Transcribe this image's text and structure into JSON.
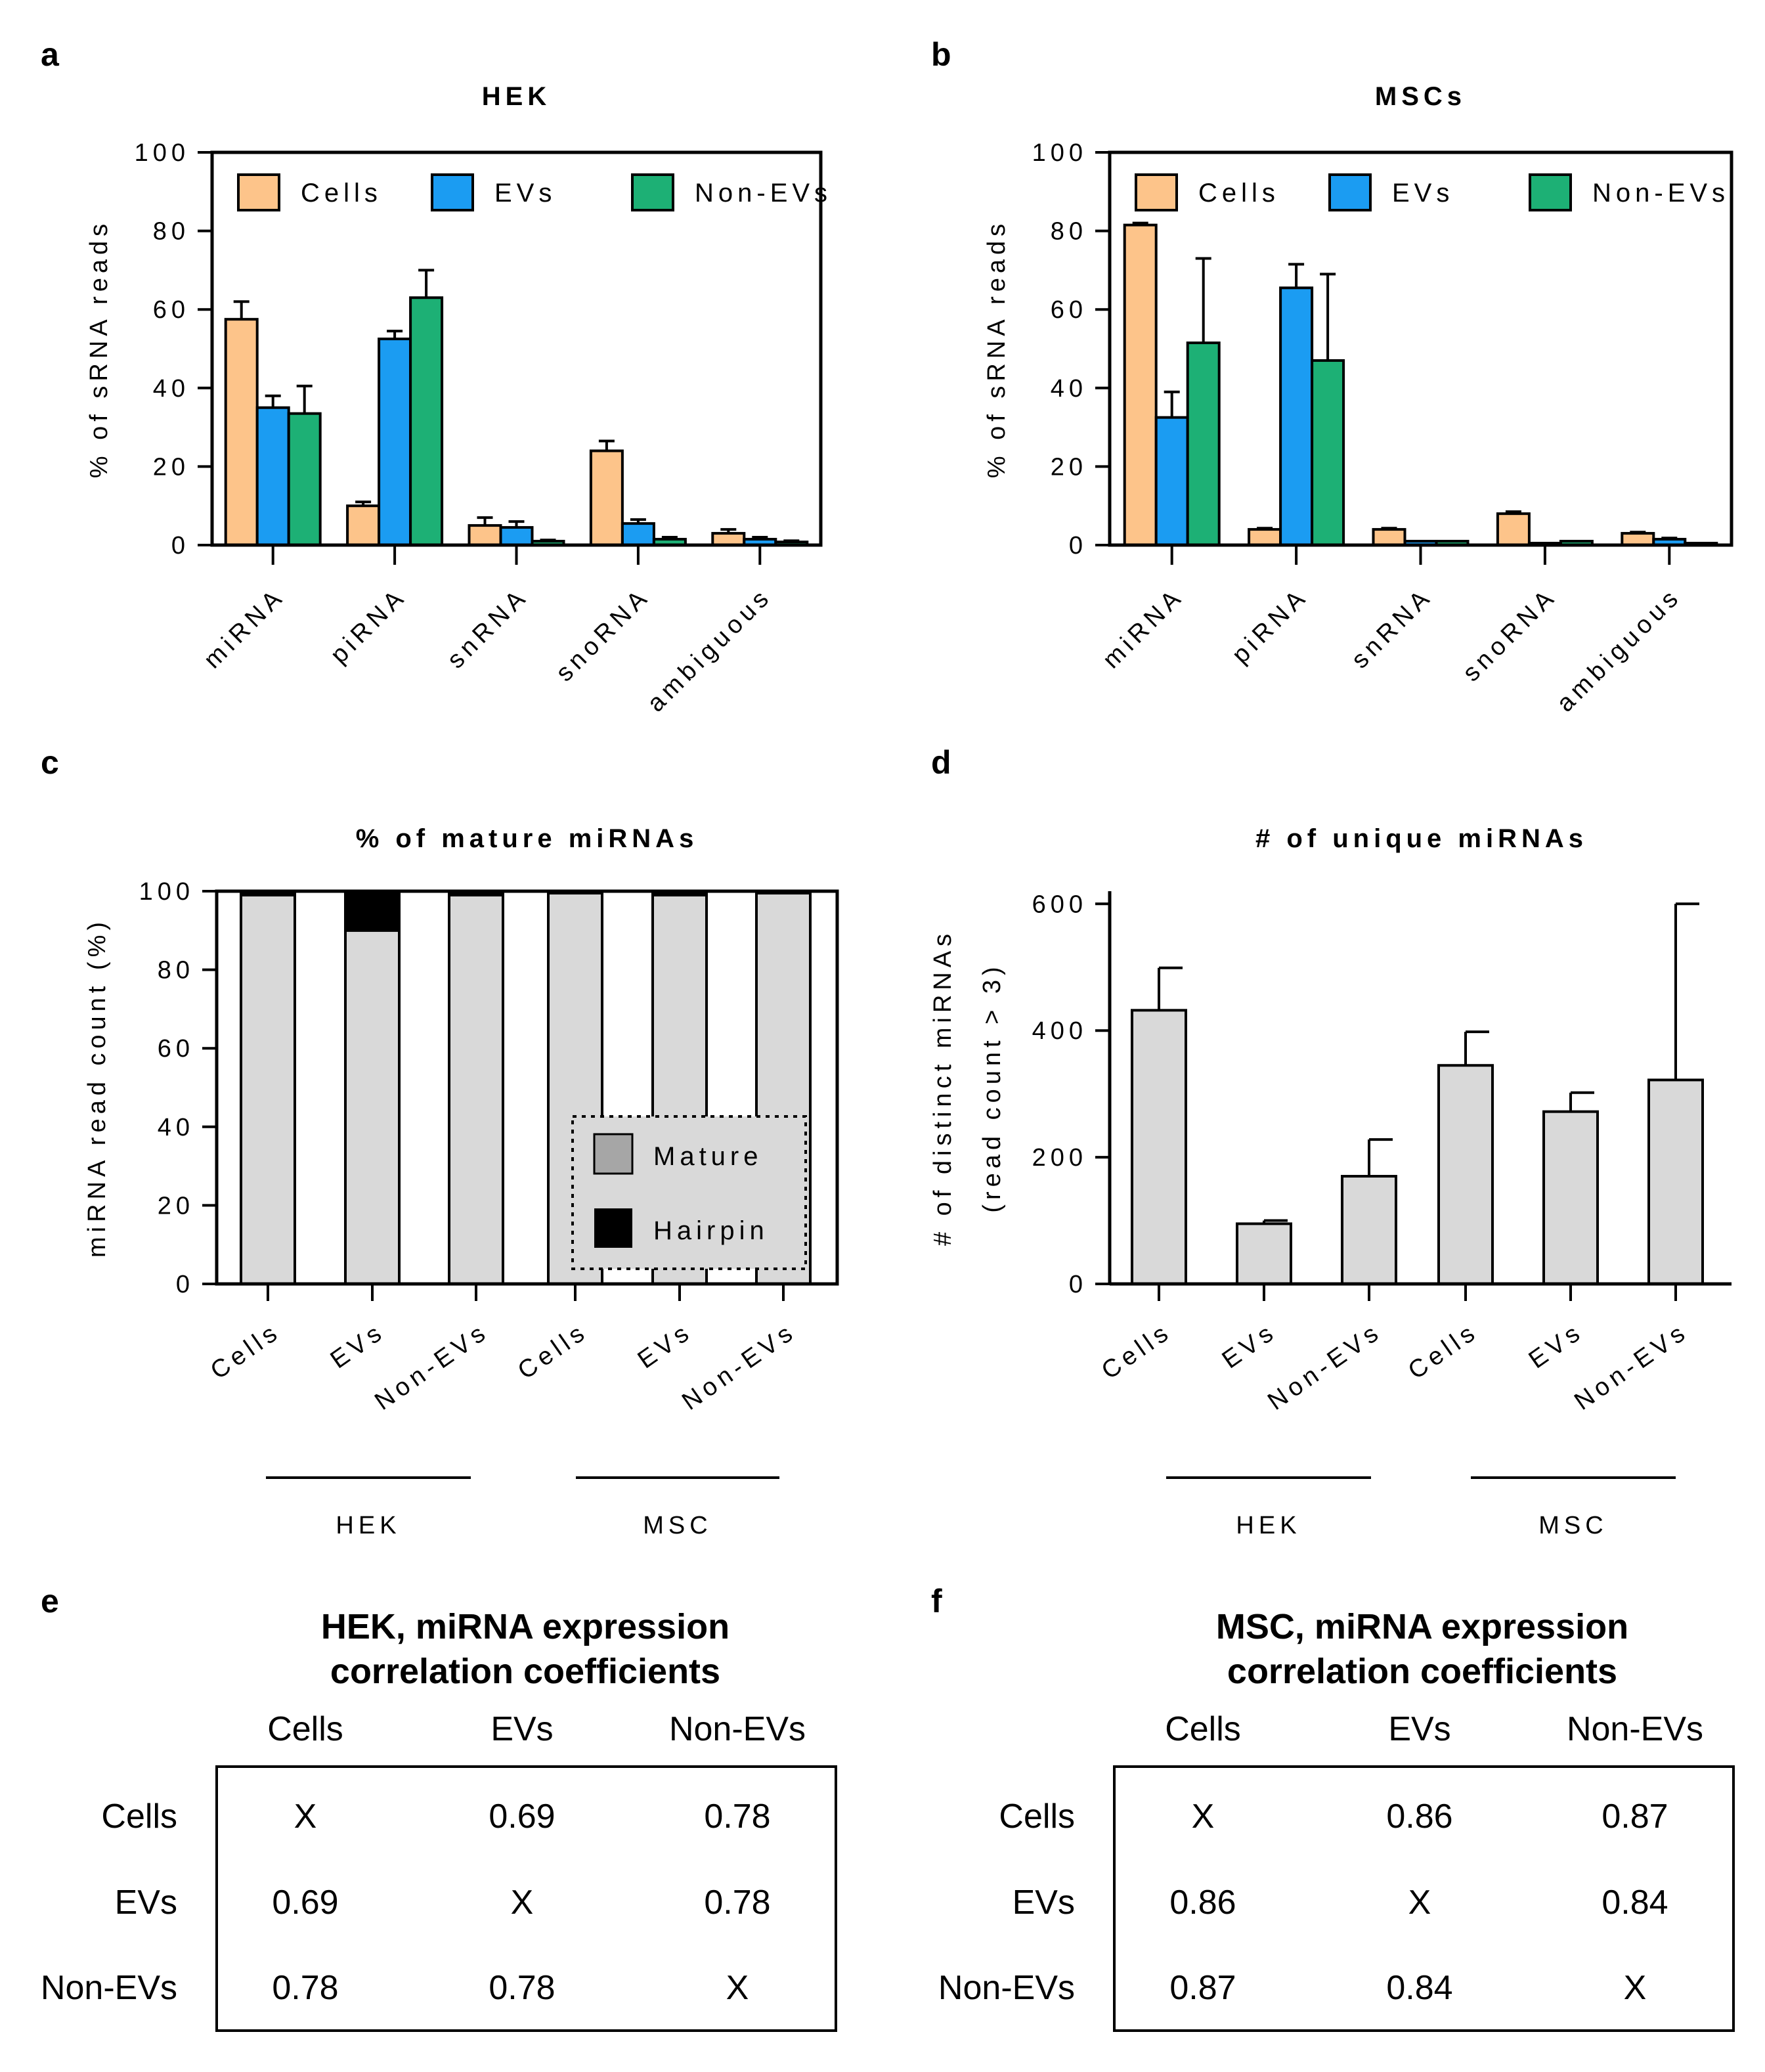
{
  "panels": {
    "a": "a",
    "b": "b",
    "c": "c",
    "d": "d",
    "e": "e",
    "f": "f"
  },
  "colors": {
    "cells": "#FDC48A",
    "evs": "#1B9CF2",
    "nonevs": "#1DB075",
    "grey_bar": "#D9D9D9",
    "mature": "#A6A6A6",
    "hairpin": "#000000"
  },
  "chart_data": [
    {
      "id": "a",
      "type": "bar",
      "title": "HEK",
      "ylabel": "% of sRNA reads",
      "ylim": [
        0,
        100
      ],
      "yticks": [
        "0",
        "20",
        "40",
        "60",
        "80",
        "100"
      ],
      "categories": [
        "miRNA",
        "piRNA",
        "snRNA",
        "snoRNA",
        "ambiguous"
      ],
      "legend": [
        "Cells",
        "EVs",
        "Non-EVs"
      ],
      "series": [
        {
          "name": "Cells",
          "values": [
            57.5,
            10,
            5,
            24,
            3
          ],
          "errors": [
            4.5,
            1,
            2,
            2.5,
            1
          ]
        },
        {
          "name": "EVs",
          "values": [
            35,
            52.5,
            4.5,
            5.5,
            1.5
          ],
          "errors": [
            3,
            2,
            1.5,
            1,
            0.5
          ]
        },
        {
          "name": "Non-EVs",
          "values": [
            33.5,
            63,
            1,
            1.5,
            0.8
          ],
          "errors": [
            7,
            7,
            0.3,
            0.5,
            0.3
          ]
        }
      ]
    },
    {
      "id": "b",
      "type": "bar",
      "title": "MSCs",
      "ylabel": "% of sRNA reads",
      "ylim": [
        0,
        100
      ],
      "yticks": [
        "0",
        "20",
        "40",
        "60",
        "80",
        "100"
      ],
      "categories": [
        "miRNA",
        "piRNA",
        "snRNA",
        "snoRNA",
        "ambiguous"
      ],
      "legend": [
        "Cells",
        "EVs",
        "Non-EVs"
      ],
      "series": [
        {
          "name": "Cells",
          "values": [
            81.5,
            4,
            4,
            8,
            3
          ],
          "errors": [
            0.5,
            0.3,
            0.3,
            0.5,
            0.3
          ]
        },
        {
          "name": "EVs",
          "values": [
            32.5,
            65.5,
            1,
            0.5,
            1.5
          ],
          "errors": [
            6.5,
            6,
            0.2,
            0.1,
            0.3
          ]
        },
        {
          "name": "Non-EVs",
          "values": [
            51.5,
            47,
            1,
            1,
            0.5
          ],
          "errors": [
            21.5,
            22,
            0.2,
            0.2,
            0.1
          ]
        }
      ]
    },
    {
      "id": "c",
      "type": "bar",
      "stacked": true,
      "title": "% of mature miRNAs",
      "ylabel": "miRNA read count (%)",
      "ylim": [
        0,
        100
      ],
      "yticks": [
        "0",
        "20",
        "40",
        "60",
        "80",
        "100"
      ],
      "categories": [
        "Cells",
        "EVs",
        "Non-EVs",
        "Cells",
        "EVs",
        "Non-EVs"
      ],
      "groups": [
        "HEK",
        "MSC"
      ],
      "legend": [
        "Mature",
        "Hairpin"
      ],
      "series": [
        {
          "name": "Mature",
          "values": [
            99,
            90,
            99,
            99.5,
            99,
            99.5
          ]
        },
        {
          "name": "Hairpin",
          "values": [
            1,
            10,
            1,
            0.5,
            1,
            0.5
          ]
        }
      ]
    },
    {
      "id": "d",
      "type": "bar",
      "title": "# of unique miRNAs",
      "ylabel": "# of distinct miRNAs",
      "ylabel2": "(read count > 3)",
      "ylim": [
        0,
        600
      ],
      "yticks": [
        "0",
        "200",
        "400",
        "600"
      ],
      "categories": [
        "Cells",
        "EVs",
        "Non-EVs",
        "Cells",
        "EVs",
        "Non-EVs"
      ],
      "groups": [
        "HEK",
        "MSC"
      ],
      "series": [
        {
          "name": "miRNAs",
          "values": [
            432,
            95,
            170,
            345,
            272,
            322
          ],
          "errors": [
            67,
            5,
            58,
            53,
            30,
            278
          ]
        }
      ]
    }
  ],
  "tables": [
    {
      "id": "e",
      "title1": "HEK, miRNA expression",
      "title2": "correlation coefficients",
      "columns": [
        "Cells",
        "EVs",
        "Non-EVs"
      ],
      "rows": [
        {
          "label": "Cells",
          "values": [
            "X",
            "0.69",
            "0.78"
          ]
        },
        {
          "label": "EVs",
          "values": [
            "0.69",
            "X",
            "0.78"
          ]
        },
        {
          "label": "Non-EVs",
          "values": [
            "0.78",
            "0.78",
            "X"
          ]
        }
      ]
    },
    {
      "id": "f",
      "title1": "MSC, miRNA expression",
      "title2": "correlation coefficients",
      "columns": [
        "Cells",
        "EVs",
        "Non-EVs"
      ],
      "rows": [
        {
          "label": "Cells",
          "values": [
            "X",
            "0.86",
            "0.87"
          ]
        },
        {
          "label": "EVs",
          "values": [
            "0.86",
            "X",
            "0.84"
          ]
        },
        {
          "label": "Non-EVs",
          "values": [
            "0.87",
            "0.84",
            "X"
          ]
        }
      ]
    }
  ]
}
